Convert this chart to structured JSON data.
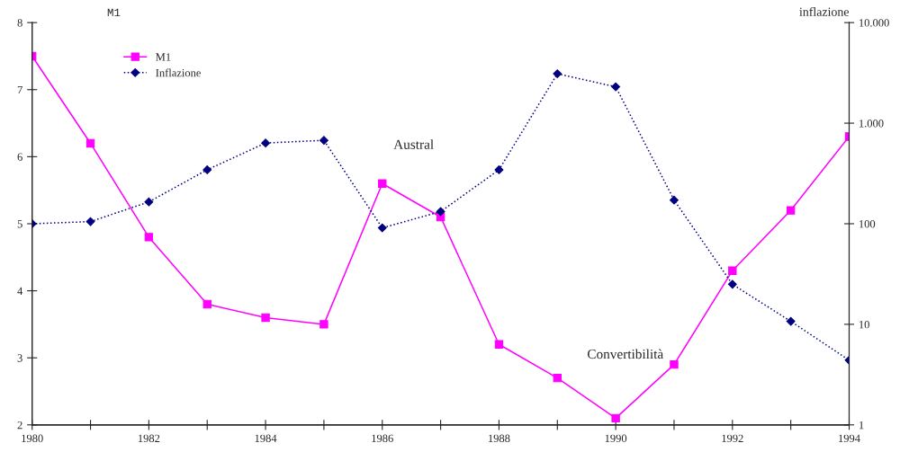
{
  "chart_data": {
    "type": "line",
    "ylabel": "M1",
    "y2label": "inflazione",
    "x": [
      1980,
      1981,
      1982,
      1983,
      1984,
      1985,
      1986,
      1987,
      1988,
      1989,
      1990,
      1991,
      1992,
      1993,
      1994
    ],
    "series": [
      {
        "name": "M1",
        "color": "#ff00ff",
        "marker": "square",
        "line_style": "solid",
        "values": [
          7.5,
          6.2,
          4.8,
          3.8,
          3.6,
          3.5,
          5.6,
          5.1,
          3.2,
          2.7,
          2.1,
          2.9,
          4.3,
          5.2,
          6.3
        ]
      },
      {
        "name": "Inflazione",
        "color": "#000080",
        "marker": "diamond",
        "line_style": "dotted",
        "axis": "y2",
        "values": [
          100,
          105,
          165,
          344,
          635,
          675,
          91,
          132,
          344,
          3100,
          2300,
          172,
          25,
          10.7,
          4.4
        ]
      }
    ],
    "xlim": [
      1980,
      1994
    ],
    "xticks": [
      1980,
      {
        "value": 1981,
        "label": null
      },
      1982,
      {
        "value": 1983,
        "label": null
      },
      1984,
      {
        "value": 1985,
        "label": null
      },
      1986,
      {
        "value": 1987,
        "label": null
      },
      1988,
      {
        "value": 1989,
        "label": null
      },
      1990,
      {
        "value": 1991,
        "label": null
      },
      1992,
      {
        "value": 1993,
        "label": null
      },
      1994
    ],
    "ylim": [
      2,
      8
    ],
    "yticks": [
      2,
      3,
      4,
      5,
      6,
      7,
      8
    ],
    "log": "y2",
    "y2lim": [
      1,
      10000
    ],
    "y2ticks": [
      1,
      10,
      100,
      {
        "value": 1000,
        "label": "1.000"
      },
      {
        "value": 10000,
        "label": "10.000"
      }
    ],
    "annotations": [
      "Austral",
      "Convertibilità"
    ],
    "grid": false,
    "legend": "top left"
  }
}
